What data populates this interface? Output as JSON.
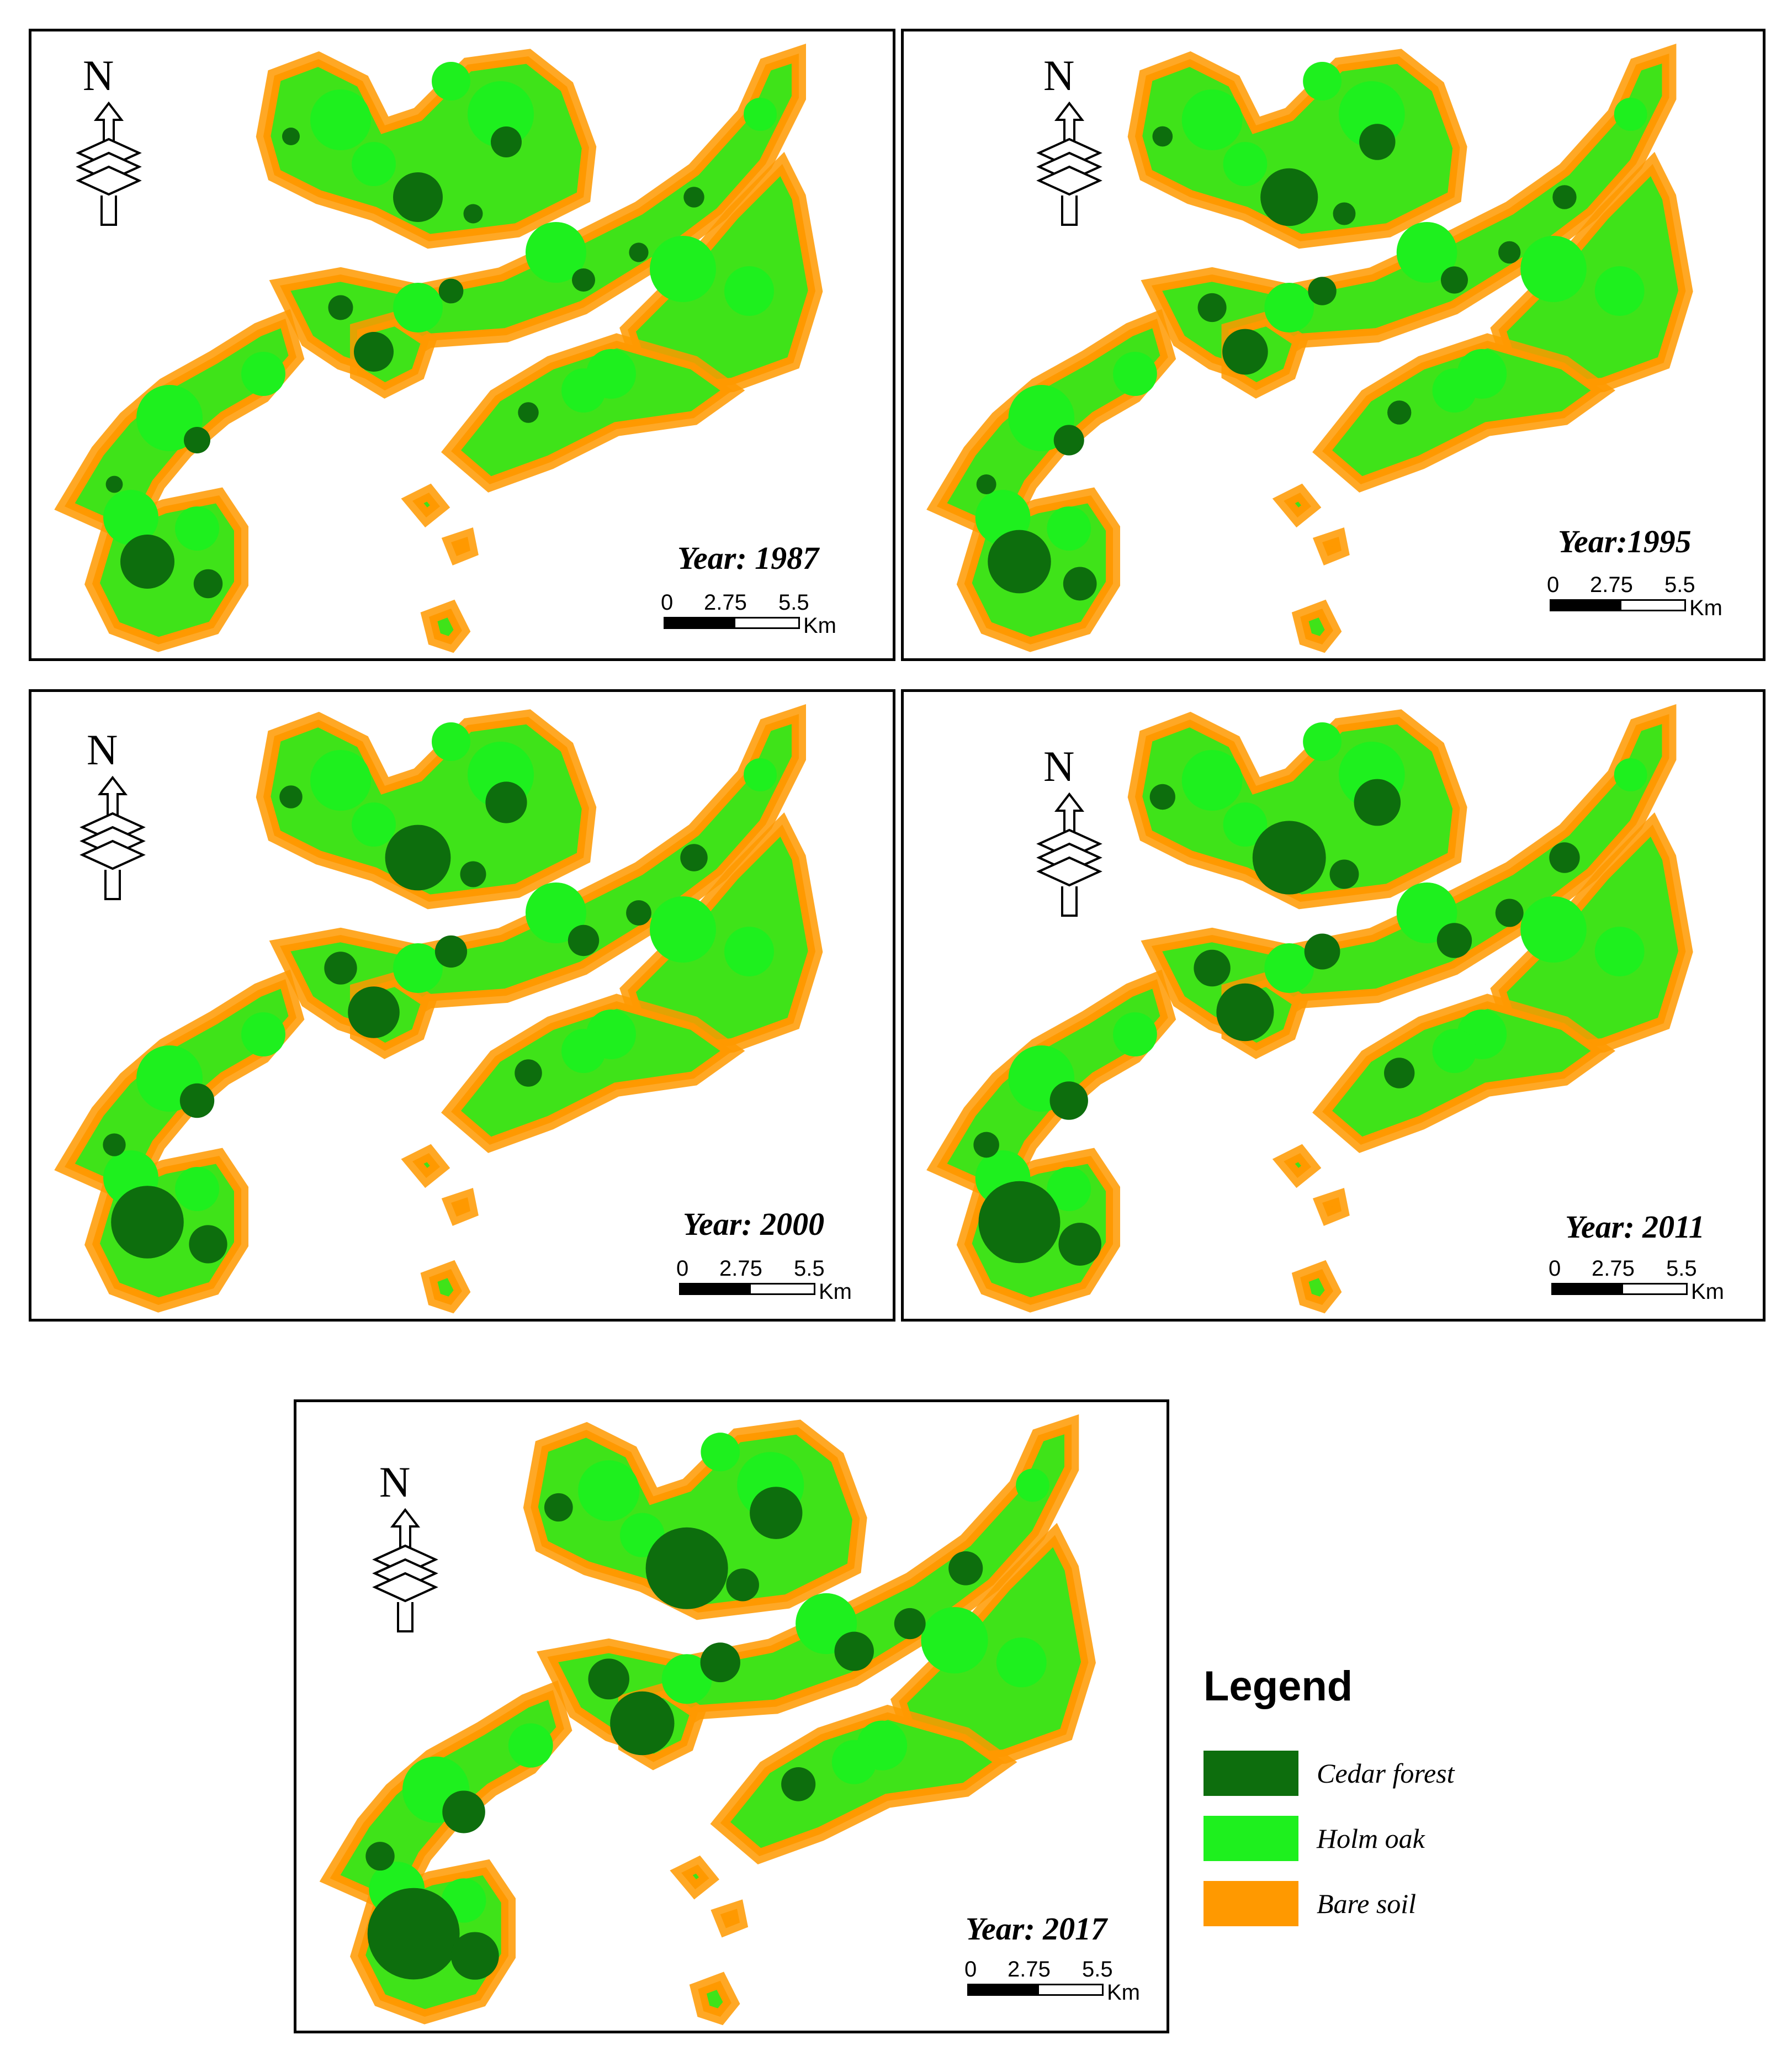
{
  "colors": {
    "cedar_forest": "#0d6e0d",
    "holm_oak": "#1ef01e",
    "bare_soil": "#ff9900"
  },
  "panels": [
    {
      "year_label": "Year: 1987",
      "scale": {
        "tick0": "0",
        "tick1": "2.75",
        "tick2": "5.5",
        "unit": "Km"
      },
      "north_label": "N"
    },
    {
      "year_label": "Year:1995",
      "scale": {
        "tick0": "0",
        "tick1": "2.75",
        "tick2": "5.5",
        "unit": "Km"
      },
      "north_label": "N"
    },
    {
      "year_label": "Year: 2000",
      "scale": {
        "tick0": "0",
        "tick1": "2.75",
        "tick2": "5.5",
        "unit": "Km"
      },
      "north_label": "N"
    },
    {
      "year_label": "Year: 2011",
      "scale": {
        "tick0": "0",
        "tick1": "2.75",
        "tick2": "5.5",
        "unit": "Km"
      },
      "north_label": "N"
    },
    {
      "year_label": "Year: 2017",
      "scale": {
        "tick0": "0",
        "tick1": "2.75",
        "tick2": "5.5",
        "unit": "Km"
      },
      "north_label": "N"
    }
  ],
  "legend": {
    "title": "Legend",
    "items": [
      {
        "label": "Cedar forest",
        "color_key": "cedar_forest"
      },
      {
        "label": "Holm oak",
        "color_key": "holm_oak"
      },
      {
        "label": "Bare soil",
        "color_key": "bare_soil"
      }
    ]
  }
}
